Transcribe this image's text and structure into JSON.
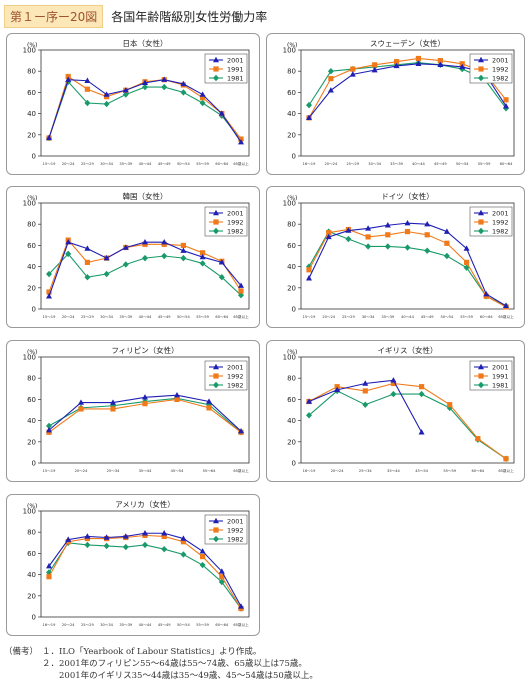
{
  "header": {
    "figure_label": "第１ー序ー20図",
    "title": "各国年齢階級別女性労働力率"
  },
  "notes": {
    "head": "（備考）",
    "items": [
      "１．ILO「Yearbook of Labour Statistics」より作成。",
      "２．2001年のフィリピン55～64歳は55～74歳、65歳以上は75歳。",
      "　　2001年のイギリス35～44歳は35～49歳、45～54歳は50歳以上。"
    ]
  },
  "chart_data": [
    {
      "type": "line",
      "title": "日本（女性）",
      "ylabel": "(%)",
      "ylim": [
        0,
        100
      ],
      "yticks": [
        0,
        20,
        40,
        60,
        80,
        100
      ],
      "categories": [
        "15～19",
        "20～24",
        "25～29",
        "30～34",
        "35～39",
        "40～44",
        "45～49",
        "50～54",
        "55～59",
        "60～64",
        "65歳以上"
      ],
      "series": [
        {
          "name": "2001",
          "color": "#1f1fb4",
          "marker": "triangle",
          "values": [
            17,
            72,
            71,
            58,
            62,
            69,
            72,
            68,
            58,
            40,
            13
          ]
        },
        {
          "name": "1991",
          "color": "#f07a1a",
          "marker": "square",
          "values": [
            17,
            75,
            63,
            56,
            62,
            70,
            72,
            67,
            55,
            40,
            16
          ]
        },
        {
          "name": "1981",
          "color": "#1a9a6a",
          "marker": "diamond",
          "values": [
            17,
            70,
            50,
            49,
            58,
            65,
            65,
            60,
            50,
            38,
            15
          ]
        }
      ]
    },
    {
      "type": "line",
      "title": "スウェーデン（女性）",
      "ylabel": "(%)",
      "ylim": [
        0,
        100
      ],
      "yticks": [
        0,
        20,
        40,
        60,
        80,
        100
      ],
      "categories": [
        "16～19",
        "20～24",
        "25～29",
        "30～34",
        "35～39",
        "40～44",
        "45～49",
        "50～54",
        "55～59",
        "60～64"
      ],
      "series": [
        {
          "name": "2001",
          "color": "#1f1fb4",
          "marker": "triangle",
          "values": [
            36,
            62,
            77,
            81,
            85,
            87,
            86,
            84,
            79,
            47
          ]
        },
        {
          "name": "1992",
          "color": "#f07a1a",
          "marker": "square",
          "values": [
            36,
            73,
            82,
            86,
            89,
            92,
            90,
            87,
            79,
            53
          ]
        },
        {
          "name": "1982",
          "color": "#1a9a6a",
          "marker": "diamond",
          "values": [
            48,
            80,
            82,
            84,
            86,
            88,
            86,
            82,
            73,
            45
          ]
        }
      ]
    },
    {
      "type": "line",
      "title": "韓国（女性）",
      "ylabel": "(%)",
      "ylim": [
        0,
        100
      ],
      "yticks": [
        0,
        20,
        40,
        60,
        80,
        100
      ],
      "categories": [
        "15～19",
        "20～24",
        "25～29",
        "30～34",
        "35～39",
        "40～44",
        "45～49",
        "50～54",
        "55～59",
        "60～64",
        "65歳以上"
      ],
      "series": [
        {
          "name": "2001",
          "color": "#1f1fb4",
          "marker": "triangle",
          "values": [
            12,
            63,
            57,
            48,
            58,
            63,
            63,
            55,
            49,
            44,
            22
          ]
        },
        {
          "name": "1992",
          "color": "#f07a1a",
          "marker": "square",
          "values": [
            16,
            65,
            44,
            48,
            58,
            61,
            61,
            60,
            53,
            45,
            17
          ]
        },
        {
          "name": "1982",
          "color": "#1a9a6a",
          "marker": "diamond",
          "values": [
            33,
            52,
            30,
            33,
            42,
            48,
            50,
            48,
            43,
            30,
            13
          ]
        }
      ]
    },
    {
      "type": "line",
      "title": "ドイツ（女性）",
      "ylabel": "(%)",
      "ylim": [
        0,
        100
      ],
      "yticks": [
        0,
        20,
        40,
        60,
        80,
        100
      ],
      "categories": [
        "15～19",
        "20～24",
        "25～29",
        "30～34",
        "35～39",
        "40～44",
        "45～49",
        "50～54",
        "55～59",
        "60～64",
        "65歳以上"
      ],
      "series": [
        {
          "name": "2001",
          "color": "#1f1fb4",
          "marker": "triangle",
          "values": [
            29,
            68,
            74,
            76,
            79,
            81,
            80,
            73,
            57,
            14,
            3
          ]
        },
        {
          "name": "1992",
          "color": "#f07a1a",
          "marker": "square",
          "values": [
            37,
            72,
            75,
            68,
            70,
            73,
            70,
            62,
            44,
            12,
            2
          ]
        },
        {
          "name": "1982",
          "color": "#1a9a6a",
          "marker": "diamond",
          "values": [
            40,
            73,
            66,
            59,
            59,
            58,
            55,
            50,
            39,
            12,
            3
          ]
        }
      ]
    },
    {
      "type": "line",
      "title": "フィリピン（女性）",
      "ylabel": "(%)",
      "ylim": [
        0,
        100
      ],
      "yticks": [
        0,
        20,
        40,
        60,
        80,
        100
      ],
      "categories": [
        "15～19",
        "20～24",
        "25～34",
        "35～44",
        "45～54",
        "55～64",
        "65歳以上"
      ],
      "series": [
        {
          "name": "2001",
          "color": "#1f1fb4",
          "marker": "triangle",
          "values": [
            31,
            57,
            57,
            62,
            64,
            58,
            30
          ]
        },
        {
          "name": "1992",
          "color": "#f07a1a",
          "marker": "square",
          "values": [
            29,
            51,
            51,
            56,
            60,
            52,
            29
          ]
        },
        {
          "name": "1982",
          "color": "#1a9a6a",
          "marker": "diamond",
          "values": [
            35,
            52,
            54,
            58,
            61,
            55,
            29
          ]
        }
      ]
    },
    {
      "type": "line",
      "title": "イギリス（女性）",
      "ylabel": "(%)",
      "ylim": [
        0,
        100
      ],
      "yticks": [
        0,
        20,
        40,
        60,
        80,
        100
      ],
      "categories": [
        "16～19",
        "20～24",
        "25～34",
        "35～44",
        "45～54",
        "55～59",
        "60～64",
        "65歳以上"
      ],
      "series": [
        {
          "name": "2001",
          "color": "#1f1fb4",
          "marker": "triangle",
          "values": [
            58,
            69,
            75,
            78,
            29,
            null,
            null,
            null
          ]
        },
        {
          "name": "1991",
          "color": "#f07a1a",
          "marker": "square",
          "values": [
            58,
            72,
            68,
            75,
            72,
            55,
            23,
            4
          ]
        },
        {
          "name": "1981",
          "color": "#1a9a6a",
          "marker": "diamond",
          "values": [
            45,
            68,
            55,
            65,
            65,
            52,
            22,
            4
          ]
        }
      ]
    },
    {
      "type": "line",
      "title": "アメリカ（女性）",
      "ylabel": "(%)",
      "ylim": [
        0,
        100
      ],
      "yticks": [
        0,
        20,
        40,
        60,
        80,
        100
      ],
      "categories": [
        "16～19",
        "20～24",
        "25～29",
        "30～34",
        "35～39",
        "40～44",
        "45～49",
        "50～54",
        "55～59",
        "60～64",
        "65歳以上"
      ],
      "series": [
        {
          "name": "2001",
          "color": "#1f1fb4",
          "marker": "triangle",
          "values": [
            48,
            73,
            76,
            75,
            76,
            79,
            79,
            74,
            62,
            43,
            10
          ]
        },
        {
          "name": "1992",
          "color": "#f07a1a",
          "marker": "square",
          "values": [
            38,
            71,
            74,
            74,
            75,
            77,
            76,
            71,
            57,
            38,
            8
          ]
        },
        {
          "name": "1982",
          "color": "#1a9a6a",
          "marker": "diamond",
          "values": [
            42,
            70,
            68,
            67,
            66,
            68,
            64,
            59,
            49,
            33,
            8
          ]
        }
      ]
    }
  ]
}
